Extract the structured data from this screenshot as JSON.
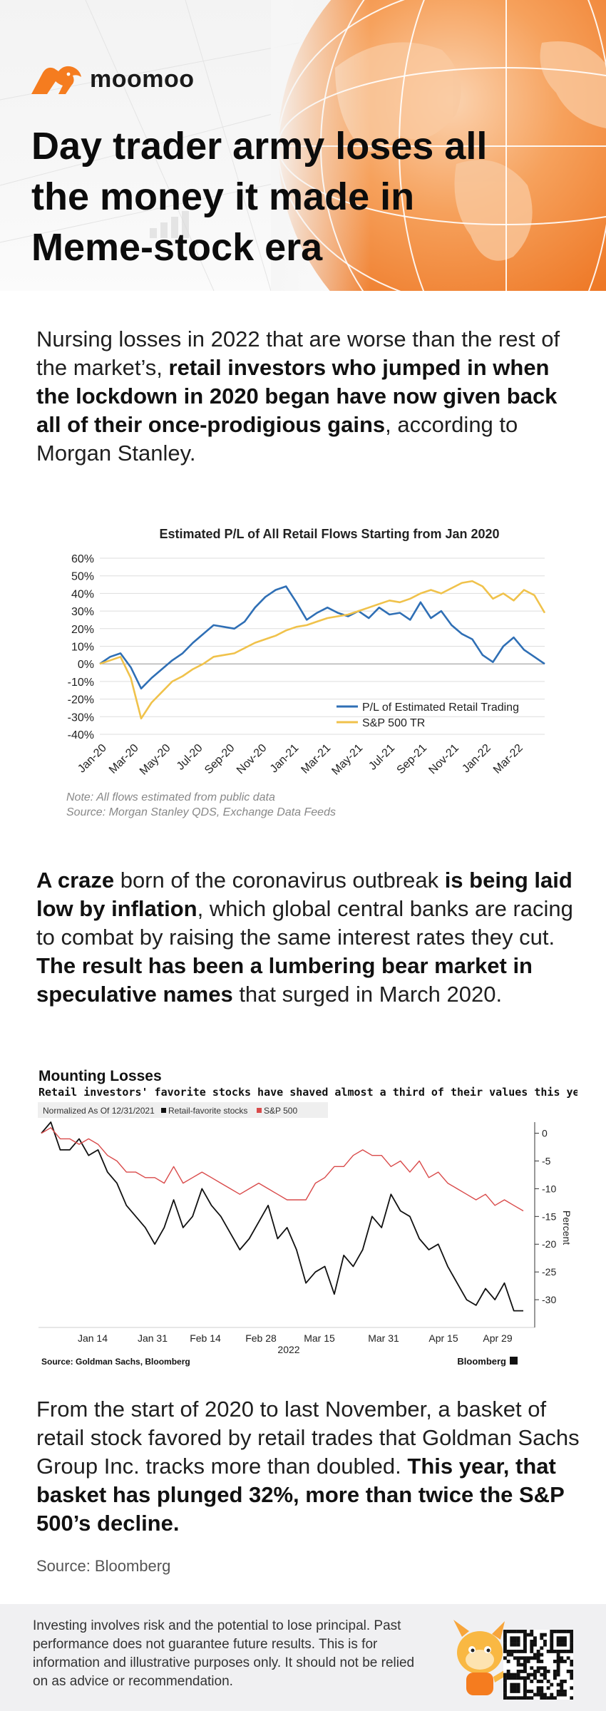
{
  "brand": {
    "name": "moomoo"
  },
  "headline": "Day trader army loses all the money it made in Meme-stock era",
  "para1": [
    {
      "t": "Nursing losses in 2022 that are worse than the rest of the market’s, ",
      "b": false
    },
    {
      "t": "retail investors who jumped in when the lockdown in 2020 began have now given back all of their once-prodigious gains",
      "b": true
    },
    {
      "t": ", according to Morgan Stanley.",
      "b": false
    }
  ],
  "para2": [
    {
      "t": "A craze",
      "b": true
    },
    {
      "t": " born of the coronavirus outbreak ",
      "b": false
    },
    {
      "t": "is being laid low by inflation",
      "b": true
    },
    {
      "t": ", which global central banks are racing to combat by raising the same interest rates they cut. ",
      "b": false
    },
    {
      "t": "The result has been a lumbering bear market in speculative names",
      "b": true
    },
    {
      "t": " that surged in March 2020.",
      "b": false
    }
  ],
  "para3": [
    {
      "t": "From the start of 2020 to last November, a basket of retail  stock favored by retail trades that Goldman Sachs Group Inc. tracks more than doubled. ",
      "b": false
    },
    {
      "t": "This year, that basket has plunged 32%, more than twice the S&P 500’s decline.",
      "b": true
    }
  ],
  "chart1": {
    "type": "line",
    "title": "Estimated P/L of All Retail Flows Starting from Jan 2020",
    "y_ticks": [
      "60%",
      "50%",
      "40%",
      "30%",
      "20%",
      "10%",
      "0%",
      "-10%",
      "-20%",
      "-30%",
      "-40%"
    ],
    "ylim": [
      -40,
      60
    ],
    "x_ticks": [
      "Jan-20",
      "Mar-20",
      "May-20",
      "Jul-20",
      "Sep-20",
      "Nov-20",
      "Jan-21",
      "Mar-21",
      "May-21",
      "Jul-21",
      "Sep-21",
      "Nov-21",
      "Jan-22",
      "Mar-22"
    ],
    "legend_position": "bottom-right",
    "series": [
      {
        "name": "P/L of Estimated Retail Trading",
        "color": "#2f6fb5",
        "values": [
          0,
          4,
          6,
          -2,
          -14,
          -8,
          -3,
          2,
          6,
          12,
          17,
          22,
          21,
          20,
          24,
          32,
          38,
          42,
          44,
          35,
          25,
          29,
          32,
          29,
          27,
          30,
          26,
          32,
          28,
          29,
          25,
          35,
          26,
          30,
          22,
          17,
          14,
          5,
          1,
          10,
          15,
          8,
          4,
          0
        ]
      },
      {
        "name": "S&P 500 TR",
        "color": "#f0c24b",
        "values": [
          0,
          2,
          4,
          -8,
          -31,
          -22,
          -16,
          -10,
          -7,
          -3,
          0,
          4,
          5,
          6,
          9,
          12,
          14,
          16,
          19,
          21,
          22,
          24,
          26,
          27,
          28,
          30,
          32,
          34,
          36,
          35,
          37,
          40,
          42,
          40,
          43,
          46,
          47,
          44,
          37,
          40,
          36,
          42,
          39,
          29
        ]
      }
    ],
    "note": "Note:  All flows estimated from public data",
    "source": "Source:  Morgan Stanley QDS, Exchange Data Feeds"
  },
  "chart2": {
    "type": "line",
    "title": "Mounting Losses",
    "subtitle": "Retail investors' favorite stocks have shaved almost a third of their values this year",
    "legend_caption": "Normalized As Of 12/31/2021",
    "ylabel": "Percent",
    "y_ticks": [
      "0",
      "-5",
      "-10",
      "-15",
      "-20",
      "-25",
      "-30"
    ],
    "ylim": [
      -35,
      2
    ],
    "x_ticks": [
      "Jan 14",
      "Jan 31",
      "Feb 14",
      "Feb 28",
      "Mar 15",
      "Mar 31",
      "Apr 15",
      "Apr 29"
    ],
    "x_year": "2022",
    "series": [
      {
        "name": "Retail-favorite stocks",
        "color": "#111111",
        "values": [
          0,
          2,
          -3,
          -3,
          -1,
          -4,
          -3,
          -7,
          -9,
          -13,
          -15,
          -17,
          -20,
          -17,
          -12,
          -17,
          -15,
          -10,
          -13,
          -15,
          -18,
          -21,
          -19,
          -16,
          -13,
          -19,
          -17,
          -21,
          -27,
          -25,
          -24,
          -29,
          -22,
          -24,
          -21,
          -15,
          -17,
          -11,
          -14,
          -15,
          -19,
          -21,
          -20,
          -24,
          -27,
          -30,
          -31,
          -28,
          -30,
          -27,
          -32,
          -32
        ]
      },
      {
        "name": "S&P 500",
        "color": "#d94a4a",
        "values": [
          0,
          1,
          -1,
          -1,
          -2,
          -1,
          -2,
          -4,
          -5,
          -7,
          -7,
          -8,
          -8,
          -9,
          -6,
          -9,
          -8,
          -7,
          -8,
          -9,
          -10,
          -11,
          -10,
          -9,
          -10,
          -11,
          -12,
          -12,
          -12,
          -9,
          -8,
          -6,
          -6,
          -4,
          -3,
          -4,
          -4,
          -6,
          -5,
          -7,
          -5,
          -8,
          -7,
          -9,
          -10,
          -11,
          -12,
          -11,
          -13,
          -12,
          -13,
          -14
        ]
      }
    ],
    "source": "Source: Goldman Sachs, Bloomberg",
    "brand": "Bloomberg"
  },
  "source_line": "Source: Bloomberg",
  "disclaimer": "Investing involves risk and the potential to lose principal. Past performance does not guarantee future results. This is for information and illustrative purposes only. It should not be relied on as advice or recommendation.",
  "colors": {
    "accent": "#f57c1f",
    "footer_bg": "#f0f0f2"
  }
}
